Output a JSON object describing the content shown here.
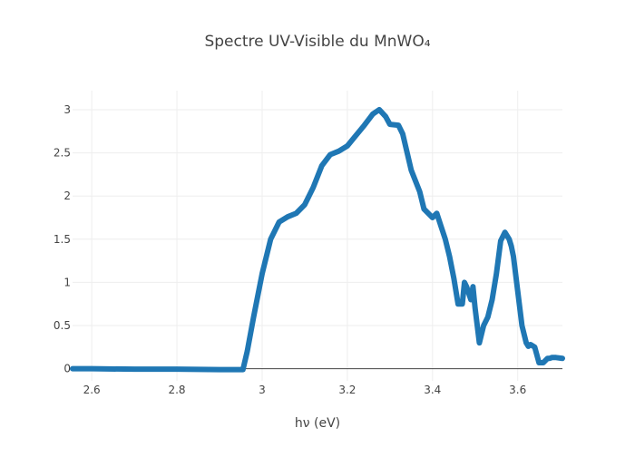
{
  "chart_data": {
    "type": "line",
    "title": "Spectre UV-Visible du MnWO₄",
    "xlabel": "hν (eV)",
    "ylabel": "",
    "xlim": [
      2.555,
      3.705
    ],
    "ylim": [
      -0.14,
      3.22
    ],
    "xticks": [
      2.6,
      2.8,
      3,
      3.2,
      3.4,
      3.6
    ],
    "xtick_labels": [
      "2.6",
      "2.8",
      "3",
      "3.2",
      "3.4",
      "3.6"
    ],
    "yticks": [
      0,
      0.5,
      1,
      1.5,
      2,
      2.5,
      3
    ],
    "ytick_labels": [
      "0",
      "0.5",
      "1",
      "1.5",
      "2",
      "2.5",
      "3"
    ],
    "grid": true,
    "legend": "none",
    "series": [
      {
        "color": "#1f77b4",
        "x": [
          2.555,
          2.6,
          2.7,
          2.8,
          2.9,
          2.94,
          2.955,
          2.965,
          2.98,
          3.0,
          3.02,
          3.04,
          3.06,
          3.08,
          3.1,
          3.12,
          3.14,
          3.16,
          3.18,
          3.2,
          3.22,
          3.24,
          3.26,
          3.275,
          3.29,
          3.3,
          3.32,
          3.33,
          3.35,
          3.37,
          3.38,
          3.39,
          3.4,
          3.41,
          3.42,
          3.43,
          3.44,
          3.45,
          3.46,
          3.47,
          3.475,
          3.48,
          3.49,
          3.495,
          3.5,
          3.505,
          3.51,
          3.52,
          3.53,
          3.54,
          3.55,
          3.56,
          3.57,
          3.58,
          3.585,
          3.59,
          3.6,
          3.61,
          3.62,
          3.625,
          3.63,
          3.64,
          3.65,
          3.66,
          3.67,
          3.675,
          3.68,
          3.69,
          3.705
        ],
        "y": [
          0.0,
          0.0,
          -0.005,
          -0.005,
          -0.01,
          -0.01,
          -0.01,
          0.2,
          0.6,
          1.1,
          1.5,
          1.7,
          1.76,
          1.8,
          1.9,
          2.1,
          2.35,
          2.48,
          2.52,
          2.58,
          2.7,
          2.82,
          2.95,
          3.0,
          2.92,
          2.83,
          2.82,
          2.72,
          2.3,
          2.05,
          1.85,
          1.8,
          1.75,
          1.8,
          1.65,
          1.5,
          1.3,
          1.05,
          0.75,
          0.75,
          1.0,
          0.95,
          0.8,
          0.95,
          0.7,
          0.5,
          0.3,
          0.5,
          0.6,
          0.8,
          1.1,
          1.48,
          1.58,
          1.5,
          1.42,
          1.3,
          0.9,
          0.5,
          0.3,
          0.26,
          0.28,
          0.25,
          0.07,
          0.07,
          0.12,
          0.12,
          0.13,
          0.13,
          0.12
        ]
      }
    ]
  }
}
